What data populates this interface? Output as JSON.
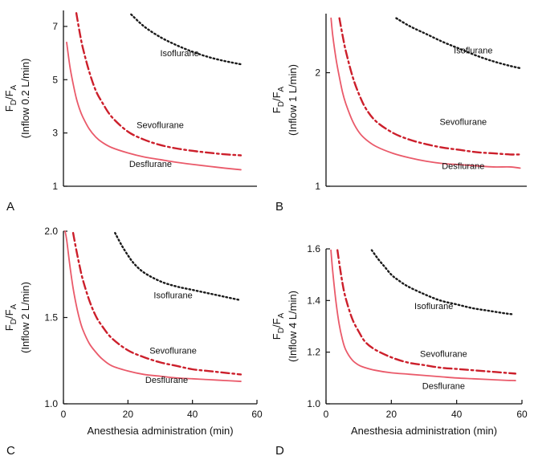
{
  "chart_data": [
    {
      "type": "line",
      "panel_label": "A",
      "ylabel_main": "F",
      "ylabel_sub_d": "D",
      "ylabel_slash": "/F",
      "ylabel_sub_a": "A",
      "ylabel_line2": "(Inflow 0.2 L/min)",
      "xlabel": "",
      "xlim": [
        0,
        60
      ],
      "ylim": [
        1,
        7.6
      ],
      "xticks": [],
      "xtick_labels": [],
      "yticks": [
        1,
        3,
        5,
        7
      ],
      "ytick_labels": [
        "1",
        "3",
        "5",
        "7"
      ],
      "grid": false,
      "series": [
        {
          "name": "Isoflurane",
          "color": "#1a1a1a",
          "style": "dotted",
          "x": [
            21,
            25,
            30,
            35,
            40,
            45,
            50,
            55
          ],
          "y": [
            7.45,
            7.0,
            6.6,
            6.3,
            6.05,
            5.85,
            5.7,
            5.58
          ]
        },
        {
          "name": "Sevoflurane",
          "color": "#cc1f2b",
          "style": "dashdot",
          "x": [
            4,
            5,
            6,
            8,
            10,
            12,
            15,
            20,
            25,
            30,
            35,
            40,
            45,
            50,
            55
          ],
          "y": [
            7.5,
            6.8,
            6.2,
            5.3,
            4.6,
            4.15,
            3.6,
            3.05,
            2.75,
            2.55,
            2.42,
            2.33,
            2.26,
            2.2,
            2.16
          ]
        },
        {
          "name": "Desflurane",
          "color": "#ea5a6a",
          "style": "solid",
          "x": [
            1,
            2,
            3,
            4,
            5,
            6,
            8,
            10,
            12,
            15,
            20,
            25,
            30,
            35,
            40,
            45,
            50,
            55
          ],
          "y": [
            6.4,
            5.5,
            4.85,
            4.3,
            3.9,
            3.6,
            3.15,
            2.85,
            2.65,
            2.45,
            2.25,
            2.1,
            2.0,
            1.9,
            1.82,
            1.75,
            1.68,
            1.62
          ]
        }
      ],
      "series_label_pos": [
        {
          "x": 36,
          "y": 6.0
        },
        {
          "x": 30,
          "y": 3.3
        },
        {
          "x": 27,
          "y": 1.85
        }
      ]
    },
    {
      "type": "line",
      "panel_label": "B",
      "ylabel_main": "F",
      "ylabel_sub_d": "D",
      "ylabel_slash": "/F",
      "ylabel_sub_a": "A",
      "ylabel_line2": "(Inflow 1 L/min)",
      "xlabel": "",
      "xlim": [
        0,
        60
      ],
      "ylim": [
        1,
        2.52
      ],
      "xticks": [],
      "xtick_labels": [],
      "yticks": [
        1,
        2
      ],
      "ytick_labels": [
        "1",
        "2"
      ],
      "grid": false,
      "series": [
        {
          "name": "Isoflurane",
          "color": "#1a1a1a",
          "style": "dotted",
          "x": [
            21,
            25,
            30,
            35,
            40,
            45,
            50,
            55,
            58
          ],
          "y": [
            2.48,
            2.41,
            2.34,
            2.27,
            2.21,
            2.15,
            2.1,
            2.06,
            2.04
          ]
        },
        {
          "name": "Sevoflurane",
          "color": "#cc1f2b",
          "style": "dashdot",
          "x": [
            4,
            5,
            6,
            8,
            10,
            12,
            15,
            20,
            25,
            30,
            35,
            40,
            45,
            50,
            55,
            58
          ],
          "y": [
            2.48,
            2.32,
            2.18,
            1.96,
            1.8,
            1.68,
            1.57,
            1.47,
            1.41,
            1.37,
            1.34,
            1.32,
            1.3,
            1.29,
            1.28,
            1.28
          ]
        },
        {
          "name": "Desflurane",
          "color": "#ea5a6a",
          "style": "solid",
          "x": [
            1.5,
            2,
            3,
            4,
            5,
            6,
            8,
            10,
            12,
            15,
            20,
            25,
            30,
            35,
            40,
            45,
            50,
            55,
            58
          ],
          "y": [
            2.48,
            2.33,
            2.12,
            1.96,
            1.82,
            1.72,
            1.57,
            1.47,
            1.41,
            1.35,
            1.29,
            1.25,
            1.22,
            1.2,
            1.19,
            1.18,
            1.17,
            1.17,
            1.16
          ]
        }
      ],
      "series_label_pos": [
        {
          "x": 44,
          "y": 2.2
        },
        {
          "x": 41,
          "y": 1.57
        },
        {
          "x": 41,
          "y": 1.18
        }
      ]
    },
    {
      "type": "line",
      "panel_label": "C",
      "ylabel_main": "F",
      "ylabel_sub_d": "D",
      "ylabel_slash": "/F",
      "ylabel_sub_a": "A",
      "ylabel_line2": "(Inflow 2 L/min)",
      "xlabel": "Anesthesia administration (min)",
      "xlim": [
        0,
        60
      ],
      "ylim": [
        1,
        2.0
      ],
      "xticks": [
        0,
        20,
        40,
        60
      ],
      "xtick_labels": [
        "0",
        "20",
        "40",
        "60"
      ],
      "yticks": [
        1,
        1.5,
        2.0
      ],
      "ytick_labels": [
        "1.0",
        "1.5",
        "2.0"
      ],
      "grid": false,
      "series": [
        {
          "name": "Isoflurane",
          "color": "#1a1a1a",
          "style": "dotted",
          "x": [
            16,
            18,
            20,
            22,
            25,
            30,
            35,
            40,
            45,
            50,
            55
          ],
          "y": [
            1.99,
            1.92,
            1.86,
            1.81,
            1.76,
            1.71,
            1.68,
            1.66,
            1.64,
            1.62,
            1.6
          ]
        },
        {
          "name": "Sevoflurane",
          "color": "#cc1f2b",
          "style": "dashdot",
          "x": [
            3,
            4,
            5,
            6,
            8,
            10,
            12,
            15,
            20,
            25,
            30,
            35,
            40,
            45,
            50,
            55
          ],
          "y": [
            1.99,
            1.89,
            1.8,
            1.72,
            1.6,
            1.51,
            1.45,
            1.38,
            1.31,
            1.27,
            1.24,
            1.22,
            1.2,
            1.19,
            1.18,
            1.17
          ]
        },
        {
          "name": "Desflurane",
          "color": "#ea5a6a",
          "style": "solid",
          "x": [
            0.5,
            1,
            2,
            3,
            4,
            5,
            6,
            8,
            10,
            12,
            15,
            20,
            25,
            30,
            35,
            40,
            45,
            50,
            55
          ],
          "y": [
            2.0,
            1.95,
            1.8,
            1.67,
            1.57,
            1.49,
            1.43,
            1.35,
            1.3,
            1.26,
            1.22,
            1.19,
            1.17,
            1.16,
            1.15,
            1.145,
            1.14,
            1.135,
            1.13
          ]
        }
      ],
      "series_label_pos": [
        {
          "x": 34,
          "y": 1.63
        },
        {
          "x": 34,
          "y": 1.31
        },
        {
          "x": 32,
          "y": 1.14
        }
      ]
    },
    {
      "type": "line",
      "panel_label": "D",
      "ylabel_main": "F",
      "ylabel_sub_d": "D",
      "ylabel_slash": "/F",
      "ylabel_sub_a": "A",
      "ylabel_line2": "(Inflow 4 L/min)",
      "xlabel": "Anesthesia administration (min)",
      "xlim": [
        0,
        60
      ],
      "ylim": [
        1,
        1.6
      ],
      "xticks": [
        0,
        20,
        40,
        60
      ],
      "xtick_labels": [
        "0",
        "20",
        "40",
        "60"
      ],
      "yticks": [
        1.0,
        1.2,
        1.4,
        1.6
      ],
      "ytick_labels": [
        "1.0",
        "1.2",
        "1.4",
        "1.6"
      ],
      "grid": false,
      "series": [
        {
          "name": "Isoflurane",
          "color": "#1a1a1a",
          "style": "dotted",
          "x": [
            14,
            16,
            18,
            20,
            22,
            25,
            30,
            35,
            40,
            45,
            50,
            55,
            57
          ],
          "y": [
            1.595,
            1.56,
            1.53,
            1.5,
            1.48,
            1.455,
            1.425,
            1.4,
            1.385,
            1.37,
            1.36,
            1.35,
            1.347
          ]
        },
        {
          "name": "Sevoflurane",
          "color": "#cc1f2b",
          "style": "dashdot",
          "x": [
            3.5,
            4,
            5,
            6,
            8,
            10,
            12,
            15,
            20,
            25,
            30,
            35,
            40,
            45,
            50,
            55,
            58
          ],
          "y": [
            1.595,
            1.55,
            1.47,
            1.41,
            1.33,
            1.28,
            1.24,
            1.21,
            1.18,
            1.16,
            1.15,
            1.14,
            1.135,
            1.13,
            1.125,
            1.12,
            1.117
          ]
        },
        {
          "name": "Desflurane",
          "color": "#ea5a6a",
          "style": "solid",
          "x": [
            1.5,
            2,
            3,
            4,
            5,
            6,
            8,
            10,
            12,
            15,
            20,
            25,
            30,
            35,
            40,
            45,
            50,
            55,
            58
          ],
          "y": [
            1.595,
            1.52,
            1.4,
            1.31,
            1.25,
            1.21,
            1.17,
            1.15,
            1.14,
            1.13,
            1.12,
            1.115,
            1.11,
            1.105,
            1.1,
            1.097,
            1.094,
            1.091,
            1.09
          ]
        }
      ],
      "series_label_pos": [
        {
          "x": 33,
          "y": 1.38
        },
        {
          "x": 36,
          "y": 1.195
        },
        {
          "x": 36,
          "y": 1.07
        }
      ]
    }
  ]
}
